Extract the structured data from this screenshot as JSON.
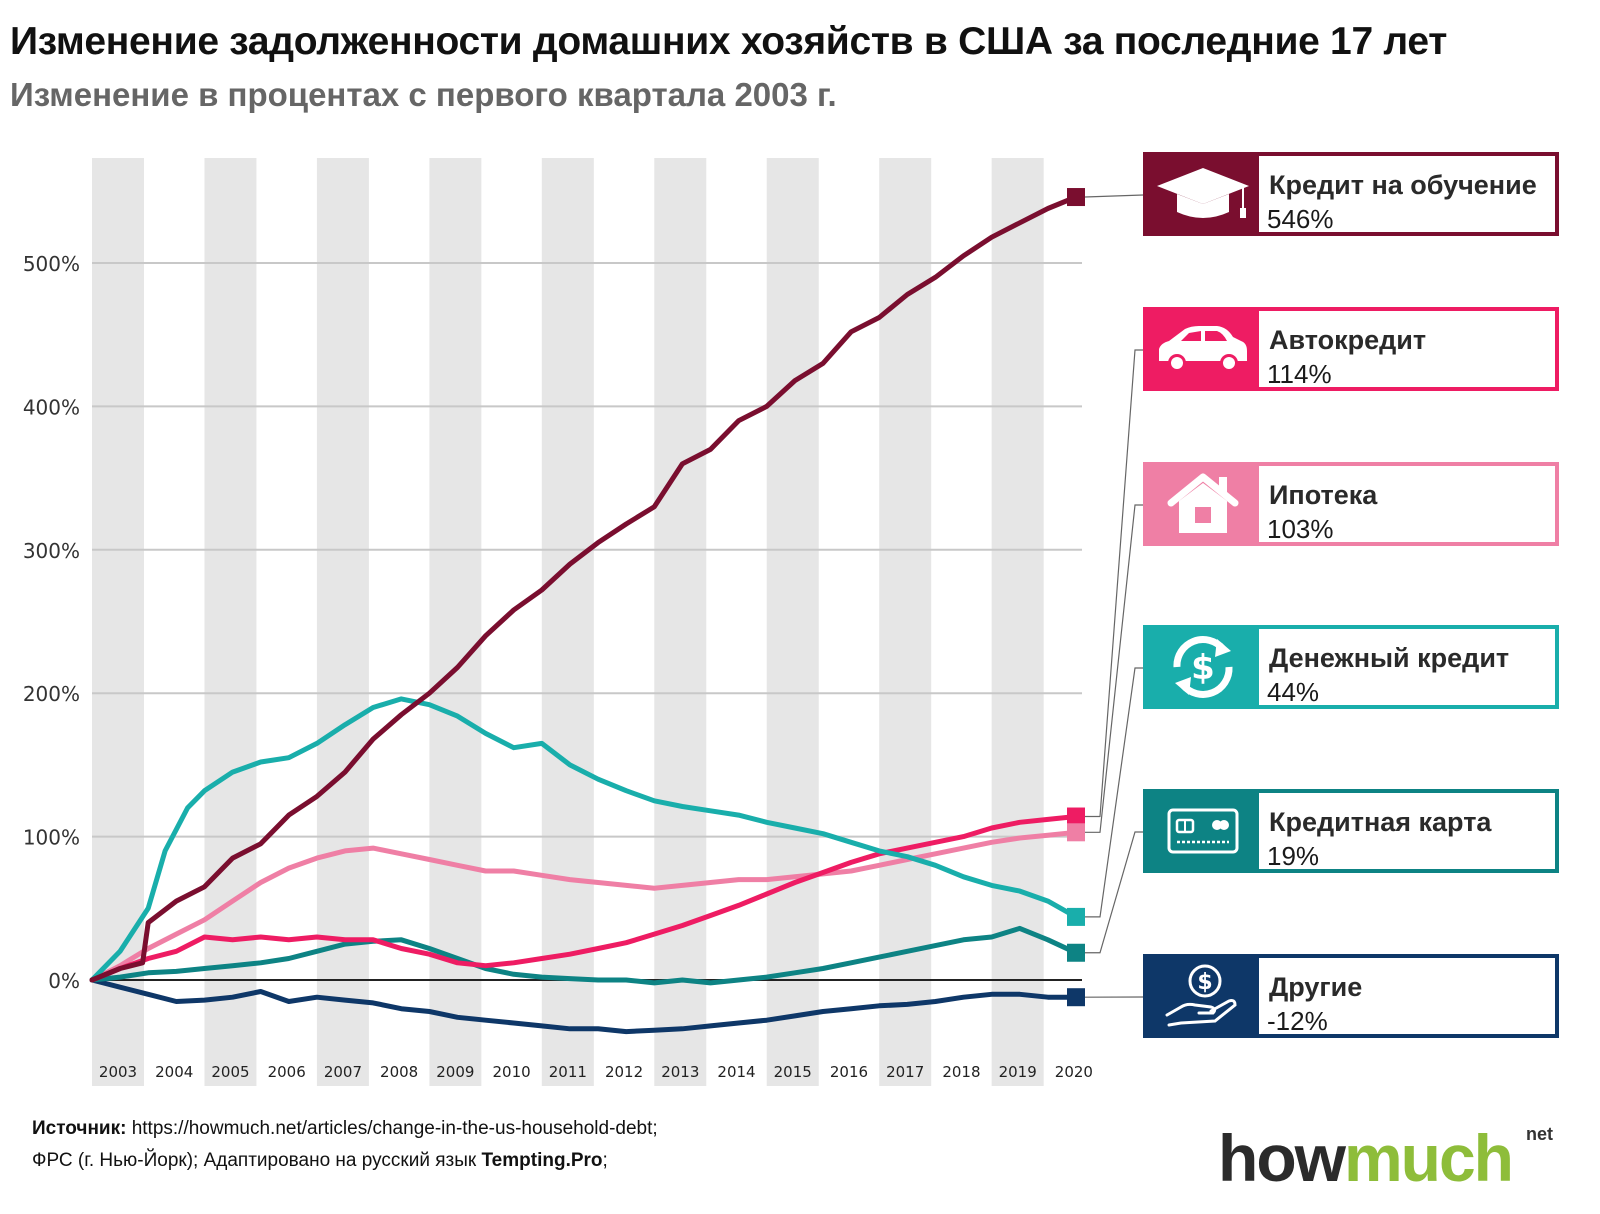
{
  "title": "Изменение задолженности домашних хозяйств в США за последние 17 лет",
  "subtitle": "Изменение в процентах с первого квартала 2003 г.",
  "chart_data": {
    "type": "line",
    "title": "Изменение задолженности домашних хозяйств в США за последние 17 лет",
    "subtitle": "Изменение в процентах с первого квартала 2003 г.",
    "xlabel": "",
    "ylabel": "",
    "ylim": [
      -42,
      570
    ],
    "xlim": [
      2003.0,
      2020.5
    ],
    "yticks": [
      0,
      100,
      200,
      300,
      400,
      500
    ],
    "ytick_labels": [
      "0%",
      "100%",
      "200%",
      "300%",
      "400%",
      "500%"
    ],
    "years": [
      "2003",
      "2004",
      "2005",
      "2006",
      "2007",
      "2008",
      "2009",
      "2010",
      "2011",
      "2012",
      "2013",
      "2014",
      "2015",
      "2016",
      "2017",
      "2018",
      "2019",
      "2020"
    ],
    "grid": true,
    "alternating_year_bands": true,
    "series": [
      {
        "key": "student",
        "name": "Кредит на обучение",
        "label": "546%",
        "color": "#7a0e2f",
        "icon": "graduation-cap-icon",
        "points": [
          [
            2003.0,
            0
          ],
          [
            2003.5,
            8
          ],
          [
            2003.9,
            12
          ],
          [
            2004.0,
            40
          ],
          [
            2004.5,
            55
          ],
          [
            2005.0,
            65
          ],
          [
            2005.5,
            85
          ],
          [
            2006.0,
            95
          ],
          [
            2006.5,
            115
          ],
          [
            2007.0,
            128
          ],
          [
            2007.5,
            145
          ],
          [
            2008.0,
            168
          ],
          [
            2008.5,
            185
          ],
          [
            2009.0,
            200
          ],
          [
            2009.5,
            218
          ],
          [
            2010.0,
            240
          ],
          [
            2010.5,
            258
          ],
          [
            2011.0,
            272
          ],
          [
            2011.5,
            290
          ],
          [
            2012.0,
            305
          ],
          [
            2012.5,
            318
          ],
          [
            2013.0,
            330
          ],
          [
            2013.5,
            360
          ],
          [
            2014.0,
            370
          ],
          [
            2014.5,
            390
          ],
          [
            2015.0,
            400
          ],
          [
            2015.5,
            418
          ],
          [
            2016.0,
            430
          ],
          [
            2016.5,
            452
          ],
          [
            2017.0,
            462
          ],
          [
            2017.5,
            478
          ],
          [
            2018.0,
            490
          ],
          [
            2018.5,
            505
          ],
          [
            2019.0,
            518
          ],
          [
            2019.5,
            528
          ],
          [
            2020.0,
            538
          ],
          [
            2020.5,
            546
          ]
        ]
      },
      {
        "key": "auto",
        "name": "Автокредит",
        "label": "114%",
        "color": "#ee1c63",
        "icon": "car-icon",
        "points": [
          [
            2003.0,
            0
          ],
          [
            2003.5,
            8
          ],
          [
            2004.0,
            15
          ],
          [
            2004.5,
            20
          ],
          [
            2005.0,
            30
          ],
          [
            2005.5,
            28
          ],
          [
            2006.0,
            30
          ],
          [
            2006.5,
            28
          ],
          [
            2007.0,
            30
          ],
          [
            2007.5,
            28
          ],
          [
            2008.0,
            28
          ],
          [
            2008.5,
            22
          ],
          [
            2009.0,
            18
          ],
          [
            2009.5,
            12
          ],
          [
            2010.0,
            10
          ],
          [
            2010.5,
            12
          ],
          [
            2011.0,
            15
          ],
          [
            2011.5,
            18
          ],
          [
            2012.0,
            22
          ],
          [
            2012.5,
            26
          ],
          [
            2013.0,
            32
          ],
          [
            2013.5,
            38
          ],
          [
            2014.0,
            45
          ],
          [
            2014.5,
            52
          ],
          [
            2015.0,
            60
          ],
          [
            2015.5,
            68
          ],
          [
            2016.0,
            75
          ],
          [
            2016.5,
            82
          ],
          [
            2017.0,
            88
          ],
          [
            2017.5,
            92
          ],
          [
            2018.0,
            96
          ],
          [
            2018.5,
            100
          ],
          [
            2019.0,
            106
          ],
          [
            2019.5,
            110
          ],
          [
            2020.0,
            112
          ],
          [
            2020.5,
            114
          ]
        ]
      },
      {
        "key": "mortgage",
        "name": "Ипотека",
        "label": "103%",
        "color": "#ef7fa5",
        "icon": "house-icon",
        "points": [
          [
            2003.0,
            0
          ],
          [
            2003.5,
            10
          ],
          [
            2004.0,
            22
          ],
          [
            2004.5,
            32
          ],
          [
            2005.0,
            42
          ],
          [
            2005.5,
            55
          ],
          [
            2006.0,
            68
          ],
          [
            2006.5,
            78
          ],
          [
            2007.0,
            85
          ],
          [
            2007.5,
            90
          ],
          [
            2008.0,
            92
          ],
          [
            2008.5,
            88
          ],
          [
            2009.0,
            84
          ],
          [
            2009.5,
            80
          ],
          [
            2010.0,
            76
          ],
          [
            2010.5,
            76
          ],
          [
            2011.0,
            73
          ],
          [
            2011.5,
            70
          ],
          [
            2012.0,
            68
          ],
          [
            2012.5,
            66
          ],
          [
            2013.0,
            64
          ],
          [
            2013.5,
            66
          ],
          [
            2014.0,
            68
          ],
          [
            2014.5,
            70
          ],
          [
            2015.0,
            70
          ],
          [
            2015.5,
            72
          ],
          [
            2016.0,
            74
          ],
          [
            2016.5,
            76
          ],
          [
            2017.0,
            80
          ],
          [
            2017.5,
            84
          ],
          [
            2018.0,
            88
          ],
          [
            2018.5,
            92
          ],
          [
            2019.0,
            96
          ],
          [
            2019.5,
            99
          ],
          [
            2020.0,
            101
          ],
          [
            2020.5,
            103
          ]
        ]
      },
      {
        "key": "personal",
        "name": "Денежный кредит",
        "label": "44%",
        "color": "#19aeab",
        "icon": "money-exchange-icon",
        "points": [
          [
            2003.0,
            0
          ],
          [
            2003.5,
            20
          ],
          [
            2004.0,
            50
          ],
          [
            2004.3,
            90
          ],
          [
            2004.7,
            120
          ],
          [
            2005.0,
            132
          ],
          [
            2005.5,
            145
          ],
          [
            2006.0,
            152
          ],
          [
            2006.5,
            155
          ],
          [
            2007.0,
            165
          ],
          [
            2007.5,
            178
          ],
          [
            2008.0,
            190
          ],
          [
            2008.5,
            196
          ],
          [
            2009.0,
            192
          ],
          [
            2009.5,
            184
          ],
          [
            2010.0,
            172
          ],
          [
            2010.5,
            162
          ],
          [
            2011.0,
            165
          ],
          [
            2011.5,
            150
          ],
          [
            2012.0,
            140
          ],
          [
            2012.5,
            132
          ],
          [
            2013.0,
            125
          ],
          [
            2013.5,
            121
          ],
          [
            2014.0,
            118
          ],
          [
            2014.5,
            115
          ],
          [
            2015.0,
            110
          ],
          [
            2015.5,
            106
          ],
          [
            2016.0,
            102
          ],
          [
            2016.5,
            96
          ],
          [
            2017.0,
            90
          ],
          [
            2017.5,
            86
          ],
          [
            2018.0,
            80
          ],
          [
            2018.5,
            72
          ],
          [
            2019.0,
            66
          ],
          [
            2019.5,
            62
          ],
          [
            2020.0,
            55
          ],
          [
            2020.5,
            44
          ]
        ]
      },
      {
        "key": "credit_card",
        "name": "Кредитная карта",
        "label": "19%",
        "color": "#0d8384",
        "icon": "credit-card-icon",
        "points": [
          [
            2003.0,
            0
          ],
          [
            2003.5,
            2
          ],
          [
            2004.0,
            5
          ],
          [
            2004.5,
            6
          ],
          [
            2005.0,
            8
          ],
          [
            2005.5,
            10
          ],
          [
            2006.0,
            12
          ],
          [
            2006.5,
            15
          ],
          [
            2007.0,
            20
          ],
          [
            2007.5,
            25
          ],
          [
            2008.0,
            27
          ],
          [
            2008.5,
            28
          ],
          [
            2009.0,
            22
          ],
          [
            2009.5,
            15
          ],
          [
            2010.0,
            8
          ],
          [
            2010.5,
            4
          ],
          [
            2011.0,
            2
          ],
          [
            2011.5,
            1
          ],
          [
            2012.0,
            0
          ],
          [
            2012.5,
            0
          ],
          [
            2013.0,
            -2
          ],
          [
            2013.5,
            0
          ],
          [
            2014.0,
            -2
          ],
          [
            2014.5,
            0
          ],
          [
            2015.0,
            2
          ],
          [
            2015.5,
            5
          ],
          [
            2016.0,
            8
          ],
          [
            2016.5,
            12
          ],
          [
            2017.0,
            16
          ],
          [
            2017.5,
            20
          ],
          [
            2018.0,
            24
          ],
          [
            2018.5,
            28
          ],
          [
            2019.0,
            30
          ],
          [
            2019.5,
            36
          ],
          [
            2020.0,
            28
          ],
          [
            2020.5,
            19
          ]
        ]
      },
      {
        "key": "other",
        "name": "Другие",
        "label": "-12%",
        "color": "#0e3768",
        "icon": "hand-coin-icon",
        "points": [
          [
            2003.0,
            0
          ],
          [
            2003.5,
            -5
          ],
          [
            2004.0,
            -10
          ],
          [
            2004.5,
            -15
          ],
          [
            2005.0,
            -14
          ],
          [
            2005.5,
            -12
          ],
          [
            2006.0,
            -8
          ],
          [
            2006.5,
            -15
          ],
          [
            2007.0,
            -12
          ],
          [
            2007.5,
            -14
          ],
          [
            2008.0,
            -16
          ],
          [
            2008.5,
            -20
          ],
          [
            2009.0,
            -22
          ],
          [
            2009.5,
            -26
          ],
          [
            2010.0,
            -28
          ],
          [
            2010.5,
            -30
          ],
          [
            2011.0,
            -32
          ],
          [
            2011.5,
            -34
          ],
          [
            2012.0,
            -34
          ],
          [
            2012.5,
            -36
          ],
          [
            2013.0,
            -35
          ],
          [
            2013.5,
            -34
          ],
          [
            2014.0,
            -32
          ],
          [
            2014.5,
            -30
          ],
          [
            2015.0,
            -28
          ],
          [
            2015.5,
            -25
          ],
          [
            2016.0,
            -22
          ],
          [
            2016.5,
            -20
          ],
          [
            2017.0,
            -18
          ],
          [
            2017.5,
            -17
          ],
          [
            2018.0,
            -15
          ],
          [
            2018.5,
            -12
          ],
          [
            2019.0,
            -10
          ],
          [
            2019.5,
            -10
          ],
          [
            2020.0,
            -12
          ],
          [
            2020.5,
            -12
          ]
        ]
      }
    ]
  },
  "source": {
    "label": "Источник:",
    "text": " https://howmuch.net/articles/change-in-the-us-household-debt;",
    "line2": "ФРС (г. Нью-Йорк); Адаптировано на русский язык ",
    "brand": "Tempting.Pro",
    "brand_suffix": ";"
  },
  "logo": {
    "how": "how",
    "much": "much",
    "net": "net"
  }
}
